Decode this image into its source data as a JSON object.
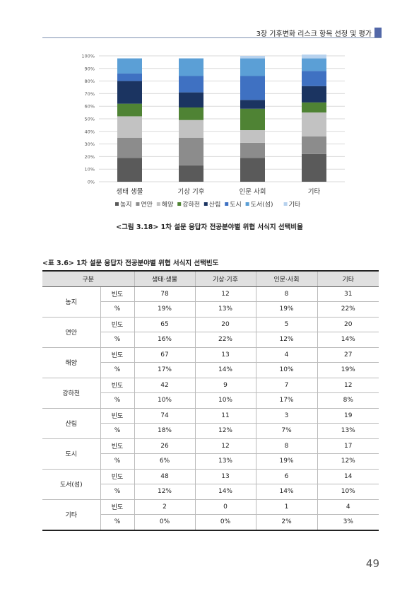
{
  "header": {
    "chapter": "3장 기후변화 리스크 항목 선정 및 평가"
  },
  "figure": {
    "caption": "<그림 3.18> 1차 설문 응답자 전공분야별 위협 서식지 선택비율"
  },
  "chart_data": {
    "type": "bar",
    "stacked": true,
    "categories": [
      "생태·생물",
      "기상·기후",
      "인문·사회",
      "기타"
    ],
    "series": [
      {
        "name": "농지",
        "values": [
          19,
          13,
          19,
          22
        ]
      },
      {
        "name": "연안",
        "values": [
          16,
          22,
          12,
          14
        ]
      },
      {
        "name": "해양",
        "values": [
          17,
          14,
          10,
          19
        ]
      },
      {
        "name": "강하천",
        "values": [
          10,
          10,
          17,
          8
        ]
      },
      {
        "name": "산림",
        "values": [
          18,
          12,
          7,
          13
        ]
      },
      {
        "name": "도시",
        "values": [
          6,
          13,
          19,
          12
        ]
      },
      {
        "name": "도서(섬)",
        "values": [
          12,
          14,
          14,
          10
        ]
      },
      {
        "name": "기타",
        "values": [
          0,
          0,
          2,
          3
        ]
      }
    ],
    "category_labels": [
      "생태 생물",
      "기상 기후",
      "인문 사회",
      "기타"
    ],
    "colors": [
      "#5a5a5a",
      "#8c8c8c",
      "#c2c2c2",
      "#4f8334",
      "#1b3461",
      "#3f71c2",
      "#5b9fd6",
      "#b7d2ee"
    ],
    "y_ticks": [
      "0%",
      "10%",
      "20%",
      "30%",
      "40%",
      "50%",
      "60%",
      "70%",
      "80%",
      "90%",
      "100%"
    ],
    "ylim": [
      0,
      100
    ],
    "grid": true,
    "legend": "bottom"
  },
  "table": {
    "caption": "<표 3.6> 1차 설문 응답자 전공분야별 위협 서식지 선택빈도",
    "headers": [
      "구분",
      "생태·생물",
      "기상·기후",
      "인문·사회",
      "기타"
    ],
    "rows": [
      {
        "group": "농지",
        "freq_label": "빈도",
        "freq": [
          "78",
          "12",
          "8",
          "31"
        ],
        "pct_label": "%",
        "pct": [
          "19%",
          "13%",
          "19%",
          "22%"
        ]
      },
      {
        "group": "연안",
        "freq_label": "빈도",
        "freq": [
          "65",
          "20",
          "5",
          "20"
        ],
        "pct_label": "%",
        "pct": [
          "16%",
          "22%",
          "12%",
          "14%"
        ]
      },
      {
        "group": "해양",
        "freq_label": "빈도",
        "freq": [
          "67",
          "13",
          "4",
          "27"
        ],
        "pct_label": "%",
        "pct": [
          "17%",
          "14%",
          "10%",
          "19%"
        ]
      },
      {
        "group": "강하천",
        "freq_label": "빈도",
        "freq": [
          "42",
          "9",
          "7",
          "12"
        ],
        "pct_label": "%",
        "pct": [
          "10%",
          "10%",
          "17%",
          "8%"
        ]
      },
      {
        "group": "산림",
        "freq_label": "빈도",
        "freq": [
          "74",
          "11",
          "3",
          "19"
        ],
        "pct_label": "%",
        "pct": [
          "18%",
          "12%",
          "7%",
          "13%"
        ]
      },
      {
        "group": "도시",
        "freq_label": "빈도",
        "freq": [
          "26",
          "12",
          "8",
          "17"
        ],
        "pct_label": "%",
        "pct": [
          "6%",
          "13%",
          "19%",
          "12%"
        ]
      },
      {
        "group": "도서(섬)",
        "freq_label": "빈도",
        "freq": [
          "48",
          "13",
          "6",
          "14"
        ],
        "pct_label": "%",
        "pct": [
          "12%",
          "14%",
          "14%",
          "10%"
        ]
      },
      {
        "group": "기타",
        "freq_label": "빈도",
        "freq": [
          "2",
          "0",
          "1",
          "4"
        ],
        "pct_label": "%",
        "pct": [
          "0%",
          "0%",
          "2%",
          "3%"
        ]
      }
    ]
  },
  "page_number": "49"
}
